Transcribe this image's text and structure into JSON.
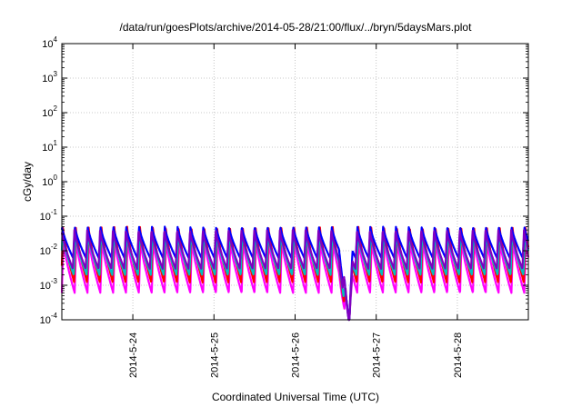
{
  "chart_data": {
    "type": "line",
    "title": "/data/run/goesPlots/archive/2014-05-28/21:00/flux/../bryn/5daysMars.plot",
    "xlabel": "Coordinated Universal Time (UTC)",
    "ylabel": "cGy/day",
    "yscale": "log",
    "ylim": [
      0.0001,
      10000
    ],
    "xlim": [
      "2014-05-23 03:00",
      "2014-05-28 21:00"
    ],
    "grid": true,
    "y_ticks": [
      {
        "base": "10",
        "exp": "-4"
      },
      {
        "base": "10",
        "exp": "-3"
      },
      {
        "base": "10",
        "exp": "-2"
      },
      {
        "base": "10",
        "exp": "-1"
      },
      {
        "base": "10",
        "exp": "0"
      },
      {
        "base": "10",
        "exp": "1"
      },
      {
        "base": "10",
        "exp": "2"
      },
      {
        "base": "10",
        "exp": "3"
      },
      {
        "base": "10",
        "exp": "4"
      }
    ],
    "x_ticks": [
      "2014-5-24",
      "2014-5-25",
      "2014-5-26",
      "2014-5-27",
      "2014-5-28"
    ],
    "pattern": {
      "cycle_hours": 3.8,
      "dip": {
        "start": "2014-05-26 13:00",
        "min": "2014-05-26 16:00",
        "end": "2014-05-26 17:00"
      }
    },
    "series": [
      {
        "color": "#ff00ff",
        "peak": 0.02,
        "trough": 0.0006
      },
      {
        "color": "#ff0000",
        "peak": 0.05,
        "trough": 0.0012
      },
      {
        "color": "#00c0c0",
        "peak": 0.03,
        "trough": 0.002
      },
      {
        "color": "#0000ff",
        "peak": 0.05,
        "trough": 0.006
      },
      {
        "color": "#8000c0",
        "peak": 0.04,
        "trough": 0.003
      }
    ]
  }
}
